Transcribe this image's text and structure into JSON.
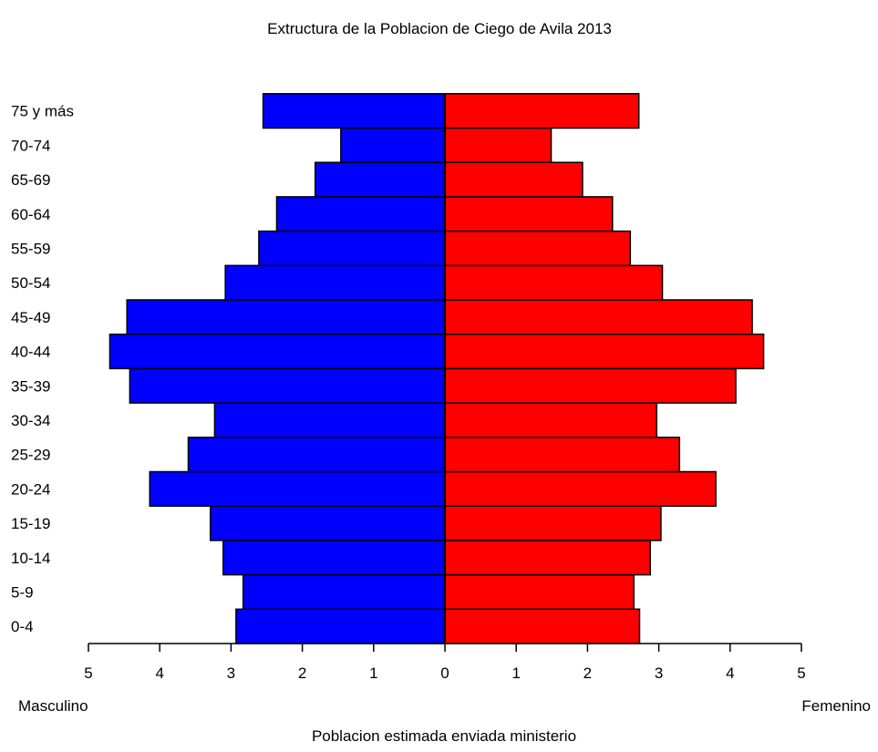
{
  "chart_data": {
    "type": "bar",
    "orientation": "horizontal",
    "title": "Extructura de la Poblacion de Ciego de Avila  2013",
    "xlabel": "Poblacion estimada enviada ministerio",
    "left_label": "Masculino",
    "right_label": "Femenino",
    "categories": [
      "0-4",
      "5-9",
      "10-14",
      "15-19",
      "20-24",
      "25-29",
      "30-34",
      "35-39",
      "40-44",
      "45-49",
      "50-54",
      "55-59",
      "60-64",
      "65-69",
      "70-74",
      "75 y más"
    ],
    "series": [
      {
        "name": "Masculino",
        "color": "#0000ff",
        "side": "left",
        "values": [
          2.93,
          2.83,
          3.11,
          3.29,
          4.14,
          3.6,
          3.23,
          4.42,
          4.7,
          4.46,
          3.08,
          2.61,
          2.36,
          1.82,
          1.46,
          2.55
        ]
      },
      {
        "name": "Femenino",
        "color": "#ff0000",
        "side": "right",
        "values": [
          2.73,
          2.65,
          2.88,
          3.03,
          3.8,
          3.29,
          2.97,
          4.08,
          4.47,
          4.31,
          3.05,
          2.6,
          2.35,
          1.93,
          1.49,
          2.72
        ]
      }
    ],
    "xlim": [
      -5,
      5
    ],
    "xticks": [
      -5,
      -4,
      -3,
      -2,
      -1,
      0,
      1,
      2,
      3,
      4,
      5
    ],
    "xtick_labels": [
      "5",
      "4",
      "3",
      "2",
      "1",
      "0",
      "1",
      "2",
      "3",
      "4",
      "5"
    ],
    "grid": false,
    "legend": "none"
  }
}
